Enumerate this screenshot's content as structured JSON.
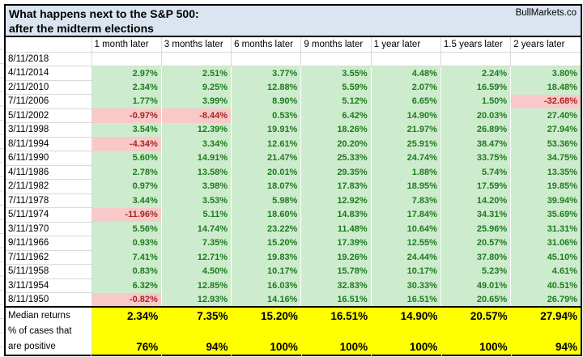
{
  "title": {
    "line1": "What happens next to the S&P 500:",
    "line2": "after the midterm elections"
  },
  "watermark": "BullMarkets.co",
  "summary_labels": {
    "median": "Median returns",
    "positive_line1": "% of cases that",
    "positive_line2": "are positive"
  },
  "colors": {
    "title_bg": "#dbe5f1",
    "positive_cell_bg": "#cdeccd",
    "positive_text": "#1f7a1f",
    "negative_cell_bg": "#f8c9c8",
    "negative_text": "#a52622",
    "summary_bg": "#ffff00",
    "gridline": "#d9d9d9",
    "border": "#000000"
  },
  "chart_data": {
    "type": "table",
    "title": "What happens next to the S&P 500: after the midterm elections",
    "columns": [
      "1 month later",
      "3 months later",
      "6 months later",
      "9 months later",
      "1 year later",
      "1.5 years later",
      "2 years later"
    ],
    "rows": [
      {
        "date": "8/11/2018",
        "values": [
          null,
          null,
          null,
          null,
          null,
          null,
          null
        ]
      },
      {
        "date": "4/11/2014",
        "values": [
          2.97,
          2.51,
          3.77,
          3.55,
          4.48,
          2.24,
          3.8
        ]
      },
      {
        "date": "2/11/2010",
        "values": [
          2.34,
          9.25,
          12.88,
          5.59,
          2.07,
          16.59,
          18.48
        ]
      },
      {
        "date": "7/11/2006",
        "values": [
          1.77,
          3.99,
          8.9,
          5.12,
          6.65,
          1.5,
          -32.68
        ]
      },
      {
        "date": "5/11/2002",
        "values": [
          -0.97,
          -8.44,
          0.53,
          6.42,
          14.9,
          20.03,
          27.4
        ]
      },
      {
        "date": "3/11/1998",
        "values": [
          3.54,
          12.39,
          19.91,
          18.26,
          21.97,
          26.89,
          27.94
        ]
      },
      {
        "date": "8/11/1994",
        "values": [
          -4.34,
          3.34,
          12.61,
          20.2,
          25.91,
          38.47,
          53.36
        ]
      },
      {
        "date": "6/11/1990",
        "values": [
          5.6,
          14.91,
          21.47,
          25.33,
          24.74,
          33.75,
          34.75
        ]
      },
      {
        "date": "4/11/1986",
        "values": [
          2.78,
          13.58,
          20.01,
          29.35,
          1.88,
          5.74,
          13.35
        ]
      },
      {
        "date": "2/11/1982",
        "values": [
          0.97,
          3.98,
          18.07,
          17.83,
          18.95,
          17.59,
          19.85
        ]
      },
      {
        "date": "7/11/1978",
        "values": [
          3.44,
          3.53,
          5.98,
          12.92,
          7.83,
          14.2,
          39.94
        ]
      },
      {
        "date": "5/11/1974",
        "values": [
          -11.96,
          5.11,
          18.6,
          14.83,
          17.84,
          34.31,
          35.69
        ]
      },
      {
        "date": "3/11/1970",
        "values": [
          5.56,
          14.74,
          23.22,
          11.48,
          10.64,
          25.96,
          31.31
        ]
      },
      {
        "date": "9/11/1966",
        "values": [
          0.93,
          7.35,
          15.2,
          17.39,
          12.55,
          20.57,
          31.06
        ]
      },
      {
        "date": "7/11/1962",
        "values": [
          7.41,
          12.71,
          19.83,
          19.26,
          24.44,
          37.8,
          45.1
        ]
      },
      {
        "date": "5/11/1958",
        "values": [
          0.83,
          4.5,
          10.17,
          15.78,
          10.17,
          5.23,
          4.61
        ]
      },
      {
        "date": "3/11/1954",
        "values": [
          6.32,
          12.85,
          16.03,
          32.83,
          30.33,
          49.01,
          40.51
        ]
      },
      {
        "date": "8/11/1950",
        "values": [
          -0.82,
          12.93,
          14.16,
          16.51,
          16.51,
          20.65,
          26.79
        ]
      }
    ],
    "median_returns": [
      2.34,
      7.35,
      15.2,
      16.51,
      14.9,
      20.57,
      27.94
    ],
    "pct_cases_positive": [
      76,
      94,
      100,
      100,
      100,
      100,
      94
    ]
  }
}
